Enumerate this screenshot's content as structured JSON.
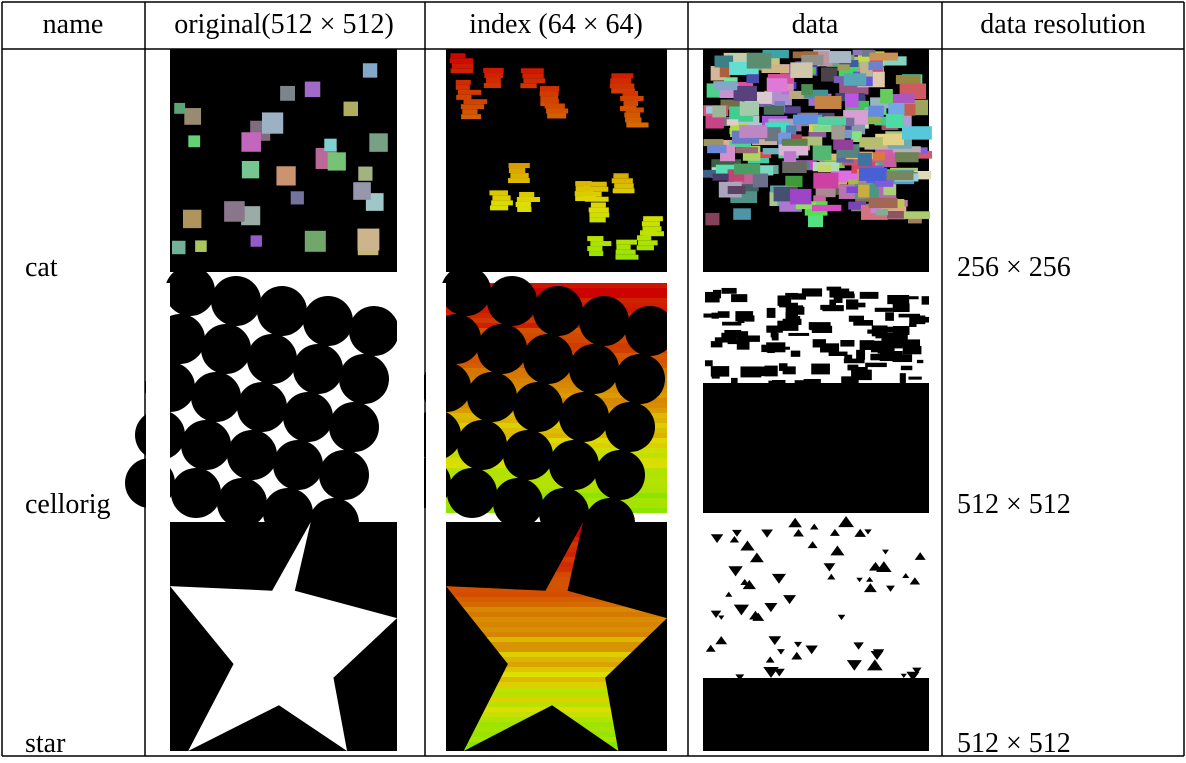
{
  "table": {
    "header": [
      "name",
      "original(512 × 512)",
      "index (64 × 64)",
      "data",
      "data resolution"
    ],
    "rows": [
      [
        "cat",
        "256 × 256"
      ],
      [
        "cellorig",
        "512 × 512"
      ],
      [
        "star",
        "512 × 512"
      ]
    ]
  }
}
